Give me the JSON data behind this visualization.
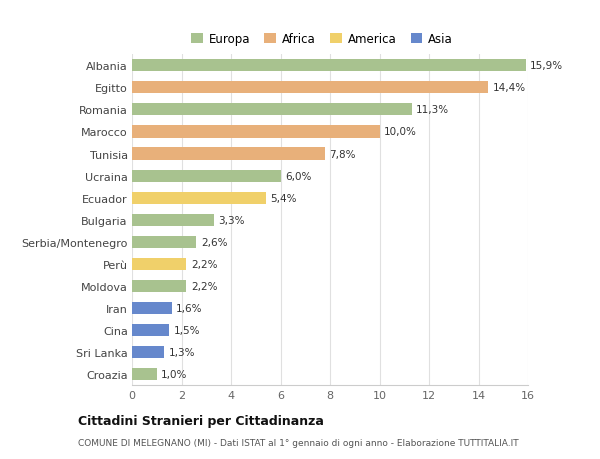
{
  "countries": [
    "Albania",
    "Egitto",
    "Romania",
    "Marocco",
    "Tunisia",
    "Ucraina",
    "Ecuador",
    "Bulgaria",
    "Serbia/Montenegro",
    "Perù",
    "Moldova",
    "Iran",
    "Cina",
    "Sri Lanka",
    "Croazia"
  ],
  "values": [
    15.9,
    14.4,
    11.3,
    10.0,
    7.8,
    6.0,
    5.4,
    3.3,
    2.6,
    2.2,
    2.2,
    1.6,
    1.5,
    1.3,
    1.0
  ],
  "labels": [
    "15,9%",
    "14,4%",
    "11,3%",
    "10,0%",
    "7,8%",
    "6,0%",
    "5,4%",
    "3,3%",
    "2,6%",
    "2,2%",
    "2,2%",
    "1,6%",
    "1,5%",
    "1,3%",
    "1,0%"
  ],
  "continents": [
    "Europa",
    "Africa",
    "Europa",
    "Africa",
    "Africa",
    "Europa",
    "America",
    "Europa",
    "Europa",
    "America",
    "Europa",
    "Asia",
    "Asia",
    "Asia",
    "Europa"
  ],
  "continent_colors": {
    "Europa": "#a8c28f",
    "Africa": "#e8b07a",
    "America": "#f0d06a",
    "Asia": "#6688cc"
  },
  "legend_order": [
    "Europa",
    "Africa",
    "America",
    "Asia"
  ],
  "title": "Cittadini Stranieri per Cittadinanza",
  "subtitle": "COMUNE DI MELEGNANO (MI) - Dati ISTAT al 1° gennaio di ogni anno - Elaborazione TUTTITALIA.IT",
  "xlim": [
    0,
    16
  ],
  "xticks": [
    0,
    2,
    4,
    6,
    8,
    10,
    12,
    14,
    16
  ],
  "bg_color": "#ffffff",
  "grid_color": "#e0e0e0",
  "bar_height": 0.55
}
